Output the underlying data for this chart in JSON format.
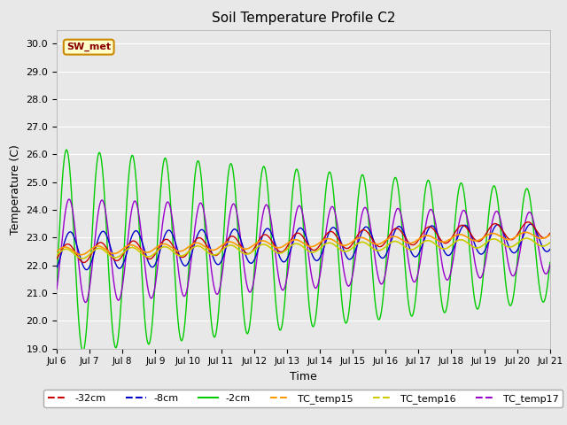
{
  "title": "Soil Temperature Profile C2",
  "xlabel": "Time",
  "ylabel": "Temperature (C)",
  "ylim": [
    19.0,
    30.5
  ],
  "yticks": [
    19.0,
    20.0,
    21.0,
    22.0,
    23.0,
    24.0,
    25.0,
    26.0,
    27.0,
    28.0,
    29.0,
    30.0
  ],
  "x_tick_labels": [
    "Jul 6",
    "Jul 7",
    "Jul 8",
    "Jul 9",
    "Jul 10",
    "Jul 11",
    "Jul 12",
    "Jul 13",
    "Jul 14",
    "Jul 15",
    "Jul 16",
    "Jul 17",
    "Jul 18",
    "Jul 19",
    "Jul 20",
    "Jul 21"
  ],
  "colors": {
    "neg32cm": "#cc0000",
    "neg8cm": "#0000cc",
    "neg2cm": "#00cc00",
    "tc15": "#ff9900",
    "tc16": "#cccc00",
    "tc17": "#9900cc"
  },
  "background_color": "#e8e8e8",
  "plot_bg_color": "#e8e8e8",
  "annotation_text": "SW_met",
  "annotation_bg": "#ffffcc",
  "annotation_border": "#cc8800",
  "annotation_text_color": "#880000"
}
